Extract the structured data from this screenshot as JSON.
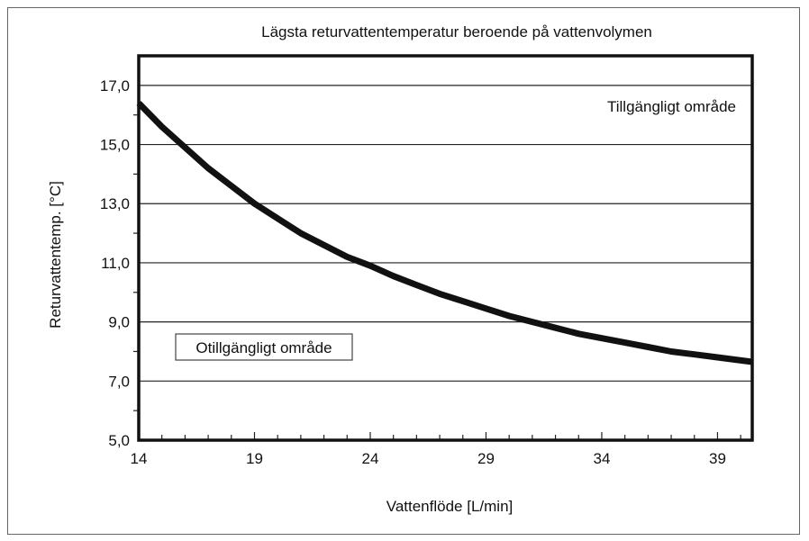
{
  "chart_data": {
    "type": "line",
    "title": "Lägsta returvattentemperatur beroende på vattenvolymen",
    "xlabel": "Vattenflöde [L/min]",
    "ylabel": "Returvattentemp. [°C]",
    "xlim": [
      14,
      40.5
    ],
    "ylim": [
      5.0,
      18.0
    ],
    "x_ticks": [
      14,
      19,
      24,
      29,
      34,
      39
    ],
    "y_ticks": [
      5.0,
      7.0,
      9.0,
      11.0,
      13.0,
      15.0,
      17.0
    ],
    "y_tick_labels": [
      "5,0",
      "7,0",
      "9,0",
      "11,0",
      "13,0",
      "15,0",
      "17,0"
    ],
    "grid": "horizontal",
    "series": [
      {
        "color": "#111111",
        "x": [
          14,
          15,
          16,
          17,
          18,
          19,
          20,
          21,
          22,
          23,
          24,
          25,
          26,
          27,
          28,
          29,
          30,
          31,
          32,
          33,
          34,
          35,
          36,
          37,
          38,
          39,
          40.5
        ],
        "y": [
          16.4,
          15.6,
          14.9,
          14.2,
          13.6,
          13.0,
          12.5,
          12.0,
          11.6,
          11.2,
          10.9,
          10.55,
          10.25,
          9.95,
          9.7,
          9.45,
          9.2,
          9.0,
          8.8,
          8.6,
          8.45,
          8.3,
          8.15,
          8.0,
          7.9,
          7.8,
          7.65
        ]
      }
    ],
    "annotations": {
      "available_region": "Tillgängligt område",
      "unavailable_region": "Otillgängligt område"
    }
  }
}
